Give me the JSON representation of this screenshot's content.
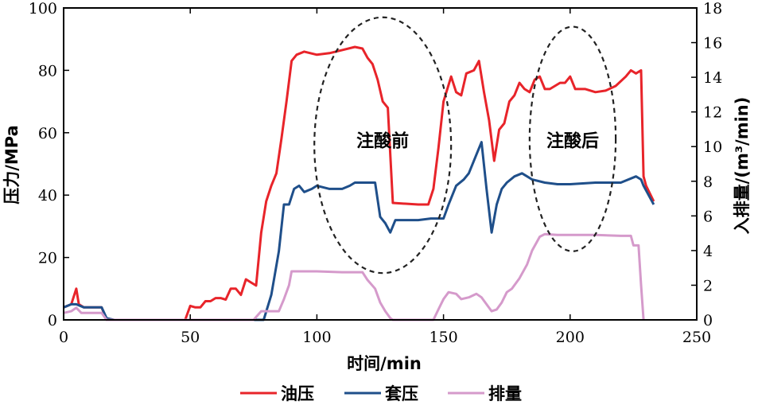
{
  "chart_data": {
    "type": "line",
    "xlabel": "时间/min",
    "ylabel_left": "压力/MPa",
    "ylabel_right": "入排量/(m³/min)",
    "xlim": [
      0,
      250
    ],
    "ylim_left": [
      0,
      100
    ],
    "ylim_right": [
      0,
      18
    ],
    "x_ticks": [
      "0",
      "50",
      "100",
      "150",
      "200",
      "250"
    ],
    "y_left_ticks": [
      "0",
      "20",
      "40",
      "60",
      "80",
      "100"
    ],
    "y_right_ticks": [
      "0",
      "2",
      "4",
      "6",
      "8",
      "10",
      "12",
      "14",
      "16",
      "18"
    ],
    "grid": false,
    "legend_position": "bottom",
    "annotations": [
      {
        "text": "注酸前",
        "x": 126,
        "y": 57
      },
      {
        "text": "注酸后",
        "x": 201,
        "y": 57
      }
    ],
    "ellipses": [
      {
        "cx": 126,
        "cy": 56,
        "rx": 27,
        "ry": 41
      },
      {
        "cx": 201,
        "cy": 58,
        "rx": 17,
        "ry": 36
      }
    ],
    "series": [
      {
        "name": "油压",
        "color": "#e8242a",
        "axis": "left",
        "points": [
          [
            0,
            4
          ],
          [
            3,
            5
          ],
          [
            5,
            10
          ],
          [
            6,
            5
          ],
          [
            8,
            4
          ],
          [
            15,
            4
          ],
          [
            17,
            0
          ],
          [
            48,
            0
          ],
          [
            50,
            4.5
          ],
          [
            52,
            4
          ],
          [
            54,
            4
          ],
          [
            56,
            6
          ],
          [
            58,
            6
          ],
          [
            60,
            7
          ],
          [
            62,
            7
          ],
          [
            64,
            6.5
          ],
          [
            66,
            10
          ],
          [
            68,
            10
          ],
          [
            70,
            8
          ],
          [
            72,
            13
          ],
          [
            74,
            12
          ],
          [
            76,
            11
          ],
          [
            78,
            28
          ],
          [
            80,
            38
          ],
          [
            82,
            43
          ],
          [
            84,
            47
          ],
          [
            86,
            58
          ],
          [
            88,
            70
          ],
          [
            90,
            83
          ],
          [
            92,
            85
          ],
          [
            95,
            86
          ],
          [
            100,
            85
          ],
          [
            105,
            85.5
          ],
          [
            110,
            86.5
          ],
          [
            115,
            87.5
          ],
          [
            118,
            87
          ],
          [
            120,
            84
          ],
          [
            122,
            82
          ],
          [
            124,
            77
          ],
          [
            126,
            70
          ],
          [
            128,
            68
          ],
          [
            130,
            37.5
          ],
          [
            140,
            37
          ],
          [
            144,
            37
          ],
          [
            146,
            42
          ],
          [
            148,
            55
          ],
          [
            150,
            70
          ],
          [
            153,
            78
          ],
          [
            155,
            73
          ],
          [
            157,
            72
          ],
          [
            159,
            79
          ],
          [
            162,
            80
          ],
          [
            164,
            83
          ],
          [
            166,
            73
          ],
          [
            168,
            64
          ],
          [
            170,
            51
          ],
          [
            172,
            61
          ],
          [
            174,
            63
          ],
          [
            176,
            70
          ],
          [
            178,
            72
          ],
          [
            180,
            76
          ],
          [
            182,
            74
          ],
          [
            184,
            73
          ],
          [
            186,
            77
          ],
          [
            188,
            78
          ],
          [
            190,
            74
          ],
          [
            192,
            74
          ],
          [
            194,
            75
          ],
          [
            196,
            76
          ],
          [
            198,
            76
          ],
          [
            200,
            78
          ],
          [
            202,
            74
          ],
          [
            206,
            74
          ],
          [
            210,
            73
          ],
          [
            214,
            73.5
          ],
          [
            218,
            75
          ],
          [
            222,
            78
          ],
          [
            224,
            80
          ],
          [
            226,
            79
          ],
          [
            228,
            80
          ],
          [
            229,
            46
          ],
          [
            230,
            43
          ],
          [
            233,
            38
          ]
        ]
      },
      {
        "name": "套压",
        "color": "#1f4f8a",
        "axis": "left",
        "points": [
          [
            0,
            4
          ],
          [
            3,
            5
          ],
          [
            5,
            5
          ],
          [
            8,
            4
          ],
          [
            15,
            4
          ],
          [
            17,
            0.5
          ],
          [
            20,
            0
          ],
          [
            76,
            0
          ],
          [
            79,
            0
          ],
          [
            82,
            8
          ],
          [
            85,
            22
          ],
          [
            87,
            37
          ],
          [
            89,
            37
          ],
          [
            91,
            42
          ],
          [
            93,
            43
          ],
          [
            95,
            41
          ],
          [
            98,
            42
          ],
          [
            100,
            43
          ],
          [
            105,
            42
          ],
          [
            110,
            42
          ],
          [
            113,
            43
          ],
          [
            115,
            44
          ],
          [
            120,
            44
          ],
          [
            123,
            44
          ],
          [
            125,
            33
          ],
          [
            127,
            31
          ],
          [
            129,
            28
          ],
          [
            131,
            32
          ],
          [
            135,
            32
          ],
          [
            140,
            32
          ],
          [
            145,
            32.5
          ],
          [
            150,
            32.5
          ],
          [
            152,
            37
          ],
          [
            155,
            43
          ],
          [
            158,
            45
          ],
          [
            160,
            47
          ],
          [
            163,
            53
          ],
          [
            165,
            57
          ],
          [
            167,
            42
          ],
          [
            169,
            28
          ],
          [
            171,
            37
          ],
          [
            173,
            42
          ],
          [
            175,
            44
          ],
          [
            178,
            46
          ],
          [
            181,
            47
          ],
          [
            183,
            46
          ],
          [
            185,
            45
          ],
          [
            190,
            44
          ],
          [
            195,
            43.5
          ],
          [
            200,
            43.5
          ],
          [
            210,
            44
          ],
          [
            220,
            44
          ],
          [
            226,
            46
          ],
          [
            228,
            45
          ],
          [
            229,
            43
          ],
          [
            233,
            37
          ]
        ]
      },
      {
        "name": "排量",
        "color": "#d59acb",
        "axis": "right",
        "points": [
          [
            0,
            0.4
          ],
          [
            3,
            0.5
          ],
          [
            5,
            0.7
          ],
          [
            7,
            0.4
          ],
          [
            15,
            0.4
          ],
          [
            17,
            0
          ],
          [
            75,
            0
          ],
          [
            78,
            0.5
          ],
          [
            85,
            0.5
          ],
          [
            87,
            1.2
          ],
          [
            89,
            2.0
          ],
          [
            90,
            2.8
          ],
          [
            95,
            2.8
          ],
          [
            100,
            2.8
          ],
          [
            110,
            2.75
          ],
          [
            118,
            2.75
          ],
          [
            120,
            2.3
          ],
          [
            123,
            1.8
          ],
          [
            125,
            1.0
          ],
          [
            127,
            0.5
          ],
          [
            129,
            0.1
          ],
          [
            130,
            0
          ],
          [
            146,
            0
          ],
          [
            148,
            0.6
          ],
          [
            150,
            1.2
          ],
          [
            152,
            1.6
          ],
          [
            155,
            1.5
          ],
          [
            157,
            1.2
          ],
          [
            160,
            1.3
          ],
          [
            163,
            1.5
          ],
          [
            165,
            1.3
          ],
          [
            167,
            0.9
          ],
          [
            169,
            0.5
          ],
          [
            171,
            0.6
          ],
          [
            173,
            1.0
          ],
          [
            175,
            1.6
          ],
          [
            177,
            1.8
          ],
          [
            180,
            2.4
          ],
          [
            183,
            3.2
          ],
          [
            185,
            4.0
          ],
          [
            188,
            4.8
          ],
          [
            190,
            4.95
          ],
          [
            195,
            4.9
          ],
          [
            200,
            4.9
          ],
          [
            210,
            4.9
          ],
          [
            220,
            4.85
          ],
          [
            224,
            4.85
          ],
          [
            225,
            4.3
          ],
          [
            227,
            4.3
          ],
          [
            228,
            2.0
          ],
          [
            229,
            0
          ]
        ]
      }
    ]
  }
}
